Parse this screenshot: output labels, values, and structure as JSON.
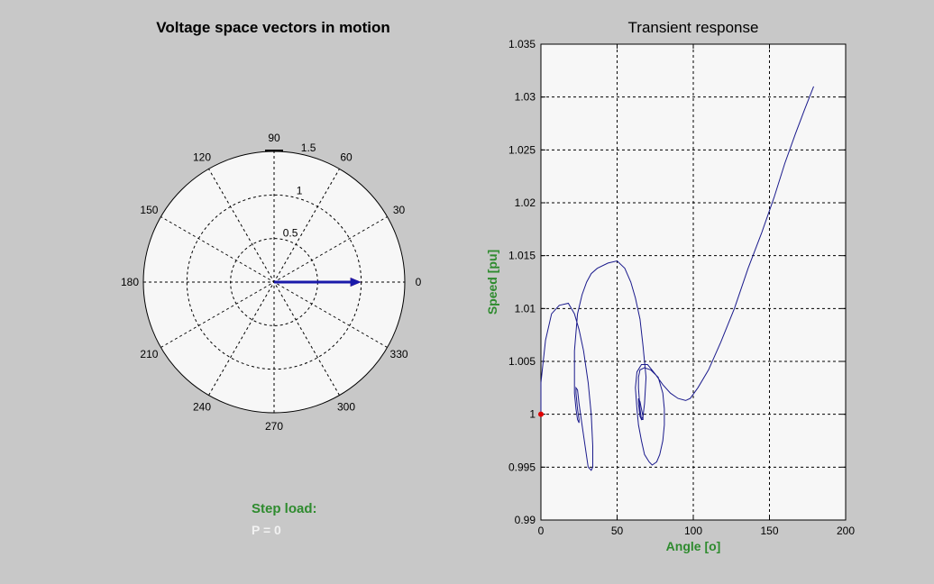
{
  "polar": {
    "title": "Voltage space vectors in motion",
    "angle_labels": [
      "0",
      "30",
      "60",
      "90",
      "120",
      "150",
      "180",
      "210",
      "240",
      "270",
      "300",
      "330"
    ],
    "radius_labels": [
      "0.5",
      "1",
      "1.5"
    ],
    "rmax": 1.5
  },
  "step_load": {
    "label": "Step load:",
    "value": "P = 0"
  },
  "colors": {
    "vector_blue": "#1a1aaa",
    "vector_red": "#cc2222",
    "curve": "#1a1a8c",
    "green_label": "#2e8b2e"
  },
  "chart_data": [
    {
      "type": "polar",
      "title": "Voltage space vectors in motion",
      "rlim": [
        0,
        1.5
      ],
      "vectors": [
        {
          "color": "blue",
          "magnitude": 1.0,
          "angle_deg": 0
        },
        {
          "color": "red",
          "magnitude": 1.0,
          "angle_deg": 0
        }
      ]
    },
    {
      "type": "line",
      "title": "Transient response",
      "xlabel": "Angle [o]",
      "ylabel": "Speed [pu]",
      "xlim": [
        0,
        200
      ],
      "ylim": [
        0.99,
        1.035
      ],
      "xticks": [
        0,
        50,
        100,
        150,
        200
      ],
      "yticks": [
        "0.99",
        "0.995",
        "1",
        "1.005",
        "1.01",
        "1.015",
        "1.02",
        "1.025",
        "1.03",
        "1.035"
      ],
      "grid": true,
      "marker_point": {
        "x": 0,
        "y": 1.0
      },
      "x": [
        0,
        0,
        3,
        7,
        12,
        18,
        22,
        25,
        28,
        31,
        33,
        34,
        34,
        33,
        31,
        29,
        27,
        25,
        24,
        23,
        23,
        24,
        25,
        25,
        24,
        23,
        22,
        22,
        24,
        27,
        30,
        33,
        37,
        44,
        50,
        55,
        59,
        62,
        65,
        67,
        69,
        68,
        67,
        66,
        65,
        64,
        64,
        65,
        66,
        67,
        67,
        66,
        65,
        64,
        64,
        65,
        68,
        72,
        77,
        80,
        81,
        81,
        80,
        78,
        76,
        73,
        71,
        68,
        66,
        64,
        63,
        62,
        63,
        66,
        70,
        75,
        80,
        85,
        90,
        95,
        98,
        103,
        110,
        118,
        127,
        136,
        145,
        153,
        160,
        167,
        173,
        179
      ],
      "y": [
        1.0,
        1.003,
        1.007,
        1.0095,
        1.0103,
        1.0105,
        1.0095,
        1.008,
        1.006,
        1.003,
        1.0,
        0.997,
        0.995,
        0.9947,
        0.995,
        0.997,
        0.999,
        1.001,
        1.0023,
        1.0025,
        1.002,
        1.0005,
        0.9995,
        0.9992,
        0.9995,
        1.0005,
        1.002,
        1.006,
        1.0095,
        1.0113,
        1.0125,
        1.0133,
        1.0138,
        1.0143,
        1.0145,
        1.0138,
        1.0125,
        1.011,
        1.009,
        1.0065,
        1.0035,
        1.001,
        0.9998,
        0.9995,
        0.9998,
        1.001,
        1.0015,
        1.0012,
        1.0005,
        0.9998,
        0.9995,
        0.9995,
        1.0005,
        1.0025,
        1.0035,
        1.0042,
        1.0044,
        1.0042,
        1.0035,
        1.002,
        1.0005,
        0.999,
        0.9975,
        0.9962,
        0.9955,
        0.9952,
        0.9955,
        0.9962,
        0.9975,
        0.999,
        1.0005,
        1.0025,
        1.004,
        1.0047,
        1.0047,
        1.0038,
        1.0028,
        1.002,
        1.0015,
        1.0013,
        1.0015,
        1.0025,
        1.0042,
        1.0068,
        1.01,
        1.0138,
        1.0172,
        1.0205,
        1.0237,
        1.0265,
        1.0288,
        1.031
      ]
    }
  ]
}
